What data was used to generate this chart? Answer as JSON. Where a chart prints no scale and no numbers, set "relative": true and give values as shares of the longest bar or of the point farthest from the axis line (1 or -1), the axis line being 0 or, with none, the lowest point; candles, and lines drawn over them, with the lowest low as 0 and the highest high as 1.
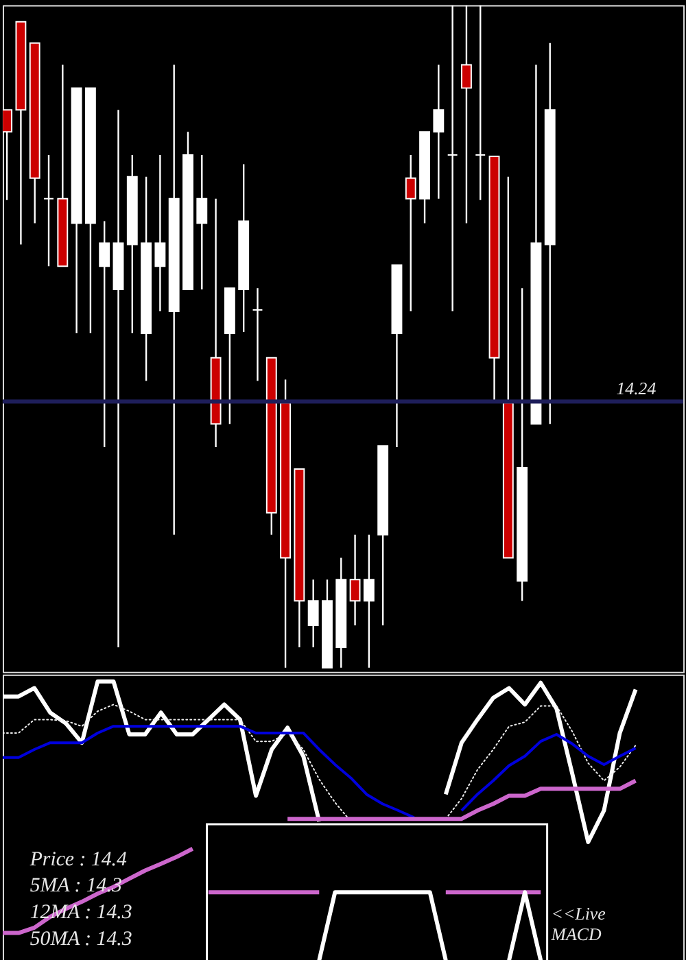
{
  "chart_data": [
    {
      "type": "candlestick",
      "relative": true,
      "categories": [
        null,
        null,
        null,
        null,
        null,
        null,
        null,
        null,
        null,
        null,
        null,
        null,
        null,
        null,
        null,
        null,
        null,
        null,
        null,
        null,
        null,
        null,
        null,
        null,
        null,
        null,
        null,
        null,
        null,
        null,
        null,
        null,
        null,
        null,
        null,
        null,
        null,
        null,
        null,
        null
      ],
      "ohlc": [
        [
          0.842,
          0.842,
          0.706,
          0.809
        ],
        [
          0.975,
          0.975,
          0.639,
          0.842
        ],
        [
          0.943,
          0.943,
          0.671,
          0.739
        ],
        [
          0.708,
          0.774,
          0.606,
          0.708
        ],
        [
          0.708,
          0.91,
          0.606,
          0.606
        ],
        [
          0.671,
          0.875,
          0.505,
          0.875
        ],
        [
          0.671,
          0.875,
          0.505,
          0.875
        ],
        [
          0.606,
          0.674,
          0.333,
          0.641
        ],
        [
          0.571,
          0.842,
          0.031,
          0.641
        ],
        [
          0.639,
          0.774,
          0.505,
          0.741
        ],
        [
          0.505,
          0.741,
          0.433,
          0.641
        ],
        [
          0.606,
          0.774,
          0.538,
          0.641
        ],
        [
          0.538,
          0.91,
          0.201,
          0.708
        ],
        [
          0.571,
          0.809,
          0.571,
          0.774
        ],
        [
          0.671,
          0.774,
          0.571,
          0.708
        ],
        [
          0.468,
          0.708,
          0.333,
          0.368
        ],
        [
          0.505,
          0.573,
          0.368,
          0.573
        ],
        [
          0.571,
          0.76,
          0.507,
          0.674
        ],
        [
          0.54,
          0.573,
          0.433,
          0.54
        ],
        [
          0.468,
          0.468,
          0.201,
          0.234
        ],
        [
          0.4,
          0.435,
          0,
          0.166
        ],
        [
          0.3,
          0.3,
          0.031,
          0.101
        ],
        [
          0.064,
          0.133,
          0.031,
          0.101
        ],
        [
          0,
          0.133,
          0,
          0.101
        ],
        [
          0.031,
          0.166,
          0,
          0.133
        ],
        [
          0.133,
          0.201,
          0.064,
          0.101
        ],
        [
          0.101,
          0.201,
          0,
          0.133
        ],
        [
          0.201,
          0.335,
          0.064,
          0.335
        ],
        [
          0.505,
          0.608,
          0.333,
          0.608
        ],
        [
          0.739,
          0.774,
          0.538,
          0.708
        ],
        [
          0.708,
          0.809,
          0.671,
          0.809
        ],
        [
          0.809,
          0.91,
          0.708,
          0.842
        ],
        [
          0.774,
          1,
          0.538,
          0.774
        ],
        [
          0.91,
          1,
          0.671,
          0.875
        ],
        [
          0.774,
          1,
          0.706,
          0.774
        ],
        [
          0.772,
          0.772,
          0.4,
          0.468
        ],
        [
          0.4,
          0.741,
          0.166,
          0.166
        ],
        [
          0.131,
          0.573,
          0.101,
          0.302
        ],
        [
          0.368,
          0.91,
          0.368,
          0.641
        ],
        [
          0.639,
          0.943,
          0.368,
          0.842
        ]
      ],
      "colors": [
        "#cc0000",
        "#cc0000",
        "#cc0000",
        "#ffffff",
        "#cc0000",
        "#ffffff",
        "#ffffff",
        "#ffffff",
        "#ffffff",
        "#ffffff",
        "#ffffff",
        "#ffffff",
        "#ffffff",
        "#ffffff",
        "#ffffff",
        "#cc0000",
        "#ffffff",
        "#ffffff",
        "#ffffff",
        "#cc0000",
        "#cc0000",
        "#cc0000",
        "#ffffff",
        "#ffffff",
        "#ffffff",
        "#cc0000",
        "#ffffff",
        "#ffffff",
        "#ffffff",
        "#cc0000",
        "#ffffff",
        "#ffffff",
        "#ffffff",
        "#cc0000",
        "#ffffff",
        "#cc0000",
        "#cc0000",
        "#ffffff",
        "#ffffff",
        "#ffffff"
      ],
      "ref_lines": [
        {
          "axis": "y",
          "value": 0.402,
          "color": "#1e1e5a"
        }
      ],
      "annotations": [
        "14.24"
      ]
    },
    {
      "type": "line",
      "relative": true,
      "categories": [
        null,
        null,
        null,
        null,
        null,
        null,
        null,
        null,
        null,
        null,
        null,
        null,
        null,
        null,
        null,
        null,
        null,
        null,
        null,
        null,
        null,
        null,
        null,
        null,
        null,
        null,
        null,
        null,
        null,
        null,
        null,
        null,
        null,
        null,
        null,
        null,
        null,
        null,
        null,
        null,
        null
      ],
      "series": [
        {
          "color": "#ffffff",
          "values": [
            0.946,
            0.946,
            0.976,
            0.888,
            0.849,
            0.78,
            1.0,
            1.0,
            0.81,
            0.81,
            0.888,
            0.81,
            0.81,
            0.863,
            0.917,
            0.863,
            0.59,
            0.756,
            0.834,
            0.732,
            0.498,
            null,
            null,
            null,
            null,
            null,
            null,
            null,
            null,
            null,
            null,
            null,
            null,
            null,
            null,
            null,
            null,
            null,
            null,
            null,
            null
          ]
        },
        {
          "color": "#ffffff",
          "values": [
            null,
            null,
            null,
            null,
            null,
            null,
            null,
            null,
            null,
            null,
            null,
            null,
            null,
            null,
            null,
            null,
            null,
            null,
            null,
            null,
            null,
            null,
            null,
            null,
            null,
            null,
            null,
            null,
            0.595,
            0.78,
            0.863,
            0.941,
            0.976,
            0.917,
            0.995,
            0.902,
            0.668,
            0.424,
            0.537,
            0.815,
            0.971
          ]
        },
        {
          "color": "#eeeeee",
          "line_style": "dotted",
          "values": [
            0.815,
            0.815,
            0.863,
            0.863,
            0.859,
            0.839,
            0.893,
            0.917,
            0.893,
            0.863,
            0.863,
            0.863,
            0.863,
            0.863,
            0.863,
            0.863,
            0.785,
            0.785,
            0.815,
            0.756,
            0.649,
            0.566,
            0.498,
            null,
            null,
            null,
            null,
            null,
            null,
            null,
            null,
            null,
            null,
            null,
            null,
            null,
            null,
            null,
            null,
            null,
            null
          ]
        },
        {
          "color": "#eeeeee",
          "line_style": "dotted",
          "values": [
            null,
            null,
            null,
            null,
            null,
            null,
            null,
            null,
            null,
            null,
            null,
            null,
            null,
            null,
            null,
            null,
            null,
            null,
            null,
            null,
            null,
            null,
            null,
            null,
            null,
            null,
            null,
            null,
            0.507,
            0.58,
            0.683,
            0.756,
            0.839,
            0.854,
            0.912,
            0.912,
            0.82,
            0.707,
            0.644,
            0.693,
            0.771
          ]
        },
        {
          "color": "#0000dd",
          "values": [
            0.727,
            0.727,
            0.756,
            0.78,
            0.78,
            0.78,
            0.815,
            0.839,
            0.839,
            0.839,
            0.839,
            0.839,
            0.839,
            0.839,
            0.839,
            0.839,
            0.815,
            0.815,
            0.815,
            0.815,
            0.756,
            0.702,
            0.654,
            0.595,
            0.561,
            0.537,
            0.512,
            null,
            null,
            null,
            null,
            null,
            null,
            null,
            null,
            null,
            null,
            null,
            null,
            null,
            null
          ]
        },
        {
          "color": "#0000dd",
          "values": [
            null,
            null,
            null,
            null,
            null,
            null,
            null,
            null,
            null,
            null,
            null,
            null,
            null,
            null,
            null,
            null,
            null,
            null,
            null,
            null,
            null,
            null,
            null,
            null,
            null,
            null,
            null,
            null,
            null,
            0.537,
            0.595,
            0.644,
            0.698,
            0.732,
            0.785,
            0.81,
            0.776,
            0.732,
            0.702,
            0.732,
            0.761
          ]
        },
        {
          "color": "#cc66cc",
          "values": [
            0.098,
            0.098,
            0.117,
            0.156,
            0.185,
            0.21,
            0.239,
            0.263,
            0.293,
            0.322,
            0.346,
            0.371,
            0.4,
            null,
            null,
            null,
            null,
            null,
            null,
            null,
            null,
            null,
            null,
            null,
            null,
            null,
            null,
            null,
            null,
            null,
            null,
            null,
            null,
            null,
            null,
            null,
            null,
            null,
            null,
            null,
            null
          ]
        },
        {
          "color": "#cc66cc",
          "values": [
            null,
            null,
            null,
            null,
            null,
            null,
            null,
            null,
            null,
            null,
            null,
            null,
            null,
            null,
            null,
            null,
            null,
            null,
            0.507,
            0.507,
            0.507,
            0.507,
            0.507,
            0.507,
            0.507,
            0.507,
            0.507,
            0.507,
            0.507,
            0.507,
            0.537,
            0.561,
            0.59,
            0.59,
            0.615,
            0.615,
            0.615,
            0.615,
            0.615,
            0.615,
            0.644
          ]
        },
        {
          "color": "#cc66cc",
          "values": [
            null,
            null,
            null,
            null,
            null,
            null,
            null,
            null,
            null,
            null,
            null,
            null,
            null,
            0.244,
            0.244,
            0.244,
            0.244,
            0.244,
            0.244,
            0.244,
            0.244,
            null,
            null,
            null,
            null,
            null,
            null,
            null,
            null,
            null,
            null,
            null,
            null,
            null,
            null,
            null,
            null,
            null,
            null,
            null,
            null
          ]
        },
        {
          "color": "#cc66cc",
          "values": [
            null,
            null,
            null,
            null,
            null,
            null,
            null,
            null,
            null,
            null,
            null,
            null,
            null,
            null,
            null,
            null,
            null,
            null,
            null,
            null,
            null,
            null,
            null,
            null,
            null,
            null,
            null,
            null,
            0.244,
            0.244,
            0.244,
            0.244,
            0.244,
            0.244,
            0.244,
            null,
            null,
            null,
            null,
            null,
            null
          ]
        },
        {
          "color": "#ffffff",
          "values": [
            null,
            null,
            null,
            null,
            null,
            null,
            null,
            null,
            null,
            null,
            null,
            null,
            null,
            null,
            null,
            null,
            null,
            null,
            null,
            null,
            0,
            0.244,
            0.244,
            0.244,
            0.244,
            0.244,
            0.244,
            0.244,
            0,
            null,
            null,
            null,
            null,
            null,
            null,
            null,
            null,
            null,
            null,
            null,
            null
          ]
        },
        {
          "color": "#ffffff",
          "values": [
            null,
            null,
            null,
            null,
            null,
            null,
            null,
            null,
            null,
            null,
            null,
            null,
            null,
            null,
            null,
            null,
            null,
            null,
            null,
            null,
            null,
            null,
            null,
            null,
            null,
            null,
            null,
            null,
            null,
            null,
            null,
            null,
            0,
            0.244,
            0,
            null,
            null,
            null,
            null,
            null,
            null
          ]
        }
      ],
      "annotations": [
        "Price : 14.4",
        "5MA : 14.3",
        "12MA : 14.3",
        "50MA : 14.3",
        "<<Live",
        "MACD"
      ]
    }
  ]
}
